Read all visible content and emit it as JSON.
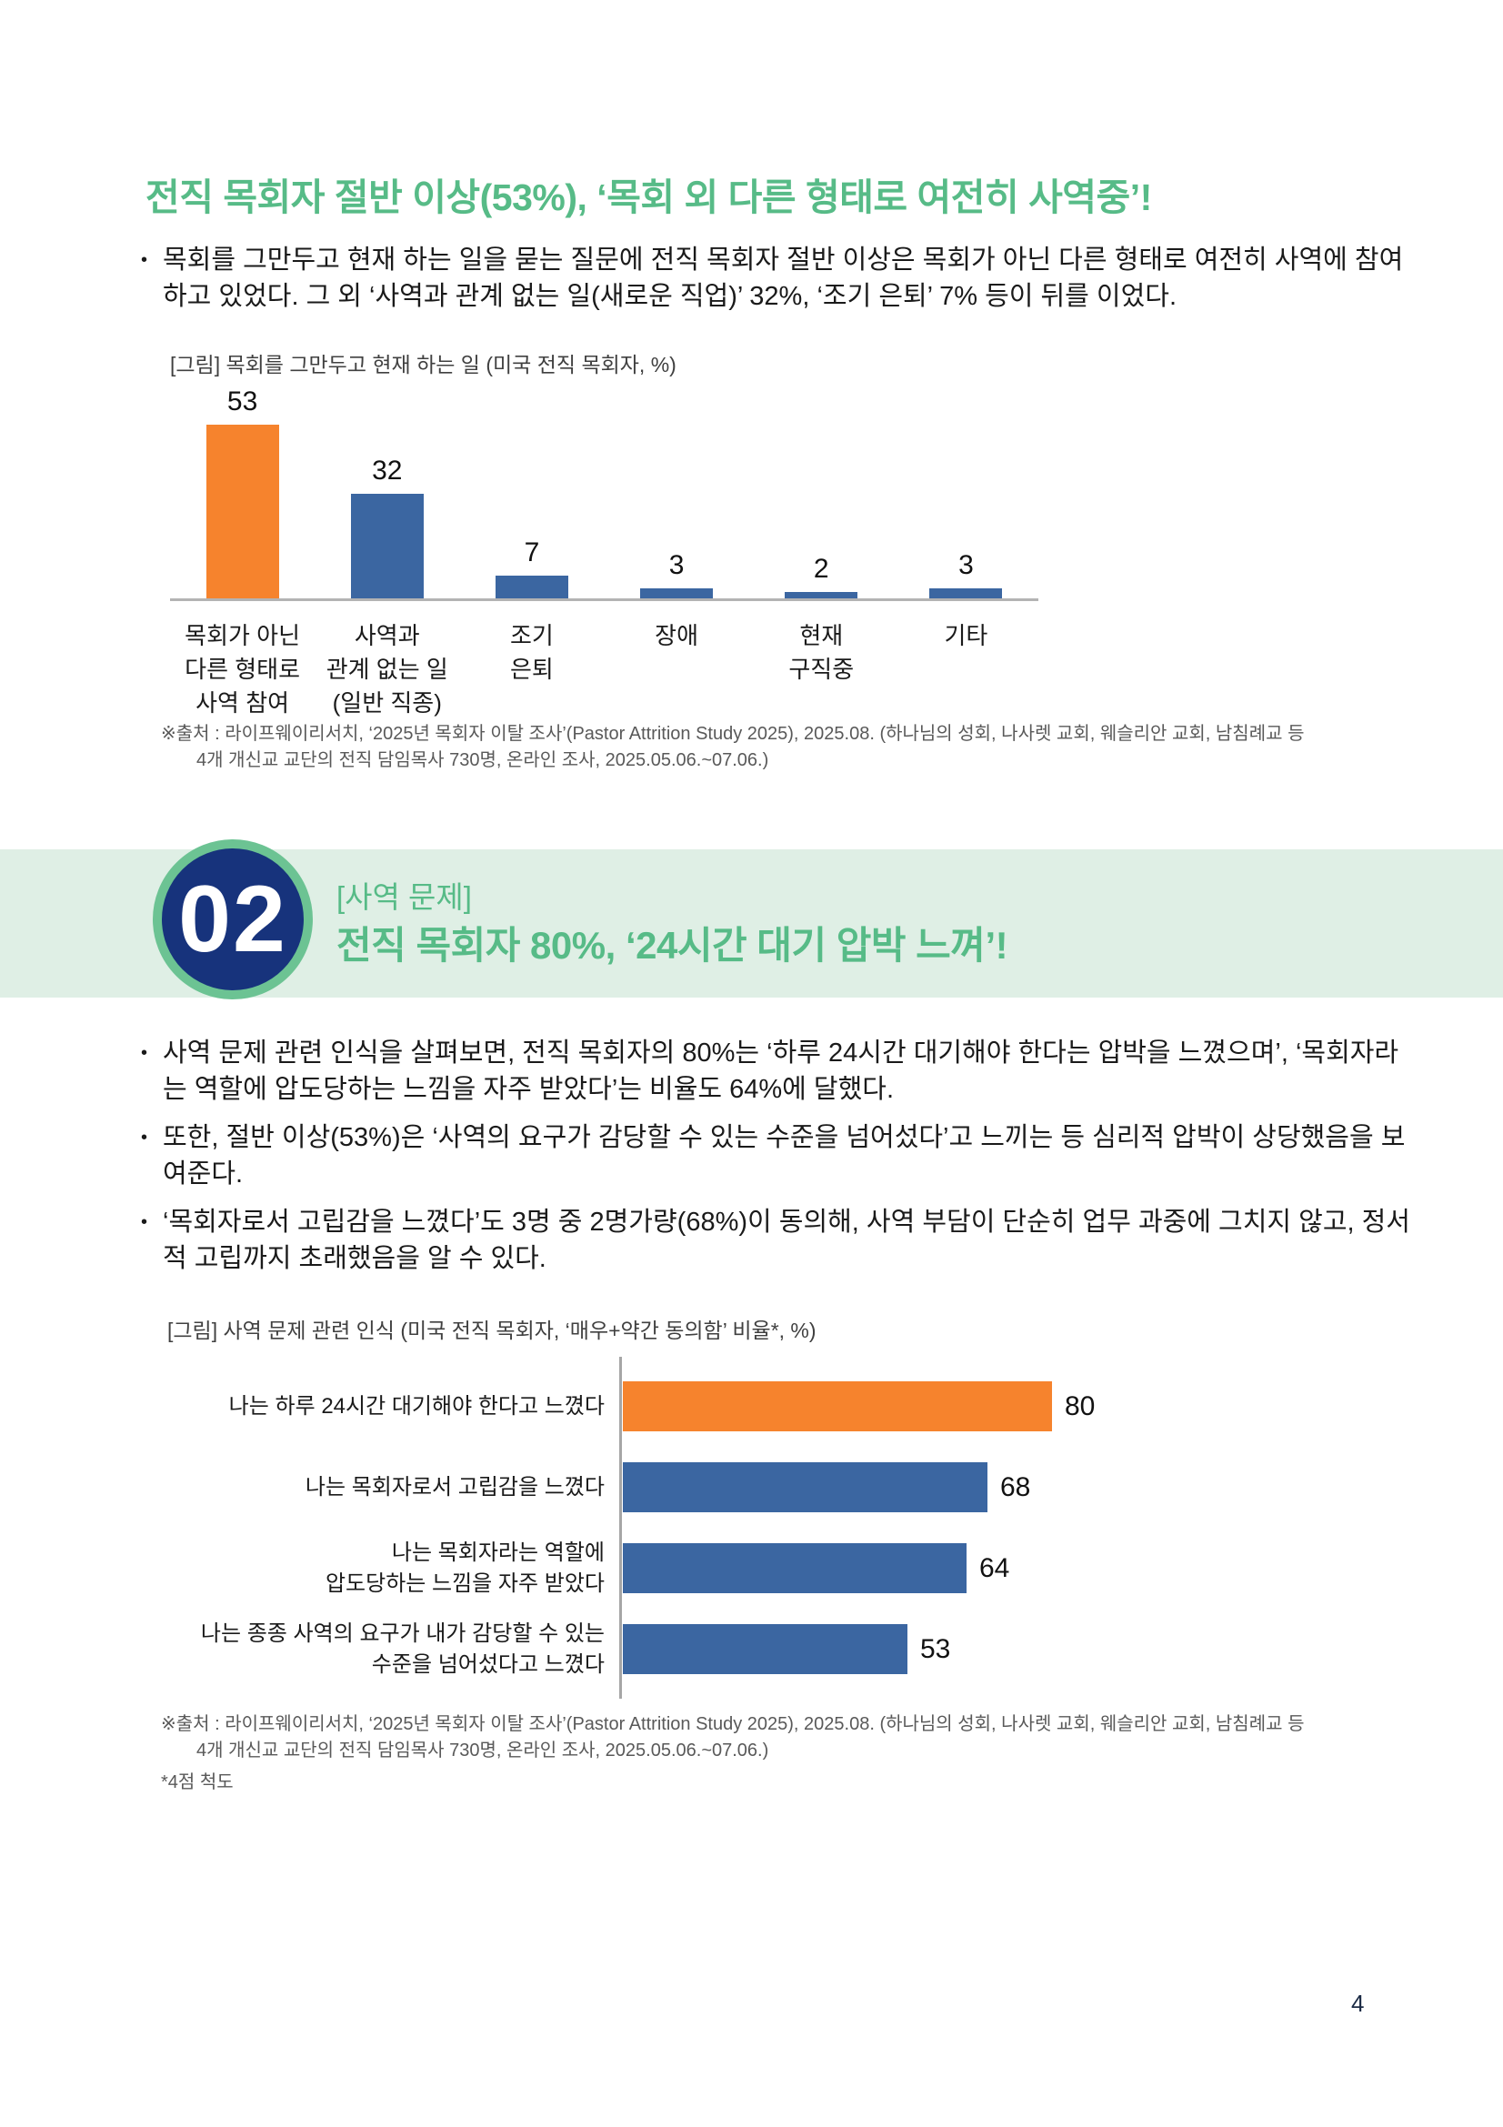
{
  "page": {
    "number": "4"
  },
  "colors": {
    "heading_green": "#57BB87",
    "band_green": "#DFEFE5",
    "badge_ring_green": "#6CC393",
    "badge_navy": "#17337C",
    "bar_orange": "#F6832D",
    "bar_blue": "#3B66A1"
  },
  "section1": {
    "title": "전직 목회자 절반 이상(53%), ‘목회 외 다른 형태로 여전히 사역중’!",
    "bullets": [
      "목회를 그만두고 현재 하는 일을 묻는 질문에 전직 목회자 절반 이상은 목회가 아닌 다른 형태로 여전히 사역에 참여하고 있었다. 그 외 ‘사역과 관계 없는 일(새로운 직업)’ 32%, ‘조기 은퇴’ 7% 등이 뒤를 이었다."
    ],
    "source_line1": "※출처 : 라이프웨이리서치, ‘2025년 목회자 이탈 조사’(Pastor Attrition Study 2025), 2025.08. (하나님의 성회, 나사렛 교회, 웨슬리안 교회, 남침례교 등",
    "source_line2": "4개 개신교 교단의 전직 담임목사 730명, 온라인 조사, 2025.05.06.~07.06.)"
  },
  "section2": {
    "number": "02",
    "kicker": "[사역 문제]",
    "title": "전직 목회자 80%, ‘24시간 대기 압박 느껴’!",
    "bullets": [
      "사역 문제 관련 인식을 살펴보면, 전직 목회자의 80%는 ‘하루 24시간 대기해야 한다는 압박을 느꼈으며’, ‘목회자라는 역할에 압도당하는 느낌을 자주 받았다’는 비율도 64%에 달했다.",
      "또한, 절반 이상(53%)은 ‘사역의 요구가 감당할 수 있는 수준을 넘어섰다’고 느끼는 등 심리적 압박이 상당했음을 보여준다.",
      "‘목회자로서 고립감을 느꼈다’도 3명 중 2명가량(68%)이 동의해, 사역 부담이 단순히 업무 과중에 그치지 않고, 정서적 고립까지 초래했음을 알 수 있다."
    ],
    "source_line1": "※출처 : 라이프웨이리서치, ‘2025년 목회자 이탈 조사’(Pastor Attrition Study 2025), 2025.08. (하나님의 성회, 나사렛 교회, 웨슬리안 교회, 남침례교 등",
    "source_line2": "4개 개신교 교단의 전직 담임목사 730명, 온라인 조사, 2025.05.06.~07.06.)",
    "footnote": "*4점 척도"
  },
  "chart_data": [
    {
      "type": "bar",
      "title": "[그림] 목회를 그만두고 현재 하는 일 (미국 전직 목회자, %)",
      "categories": [
        "목회가 아닌\n다른 형태로\n사역 참여",
        "사역과\n관계 없는 일\n(일반 직종)",
        "조기\n은퇴",
        "장애",
        "현재\n구직중",
        "기타"
      ],
      "values": [
        53,
        32,
        7,
        3,
        2,
        3
      ],
      "colors": [
        "#F6832D",
        "#3B66A1",
        "#3B66A1",
        "#3B66A1",
        "#3B66A1",
        "#3B66A1"
      ],
      "unit": "%",
      "ylim": [
        0,
        60
      ],
      "grid": false,
      "value_labels": true,
      "legend": "none"
    },
    {
      "type": "bar",
      "orientation": "horizontal",
      "title": "[그림] 사역 문제 관련 인식 (미국 전직 목회자, ‘매우+약간 동의함’ 비율*, %)",
      "categories": [
        "나는 하루 24시간 대기해야 한다고 느꼈다",
        "나는 목회자로서 고립감을 느꼈다",
        "나는 목회자라는 역할에\n압도당하는 느낌을 자주 받았다",
        "나는 종종 사역의 요구가 내가 감당할 수 있는\n수준을 넘어섰다고 느꼈다"
      ],
      "values": [
        80,
        68,
        64,
        53
      ],
      "colors": [
        "#F6832D",
        "#3B66A1",
        "#3B66A1",
        "#3B66A1"
      ],
      "unit": "%",
      "xlim": [
        0,
        100
      ],
      "grid": false,
      "value_labels": true,
      "legend": "none"
    }
  ]
}
